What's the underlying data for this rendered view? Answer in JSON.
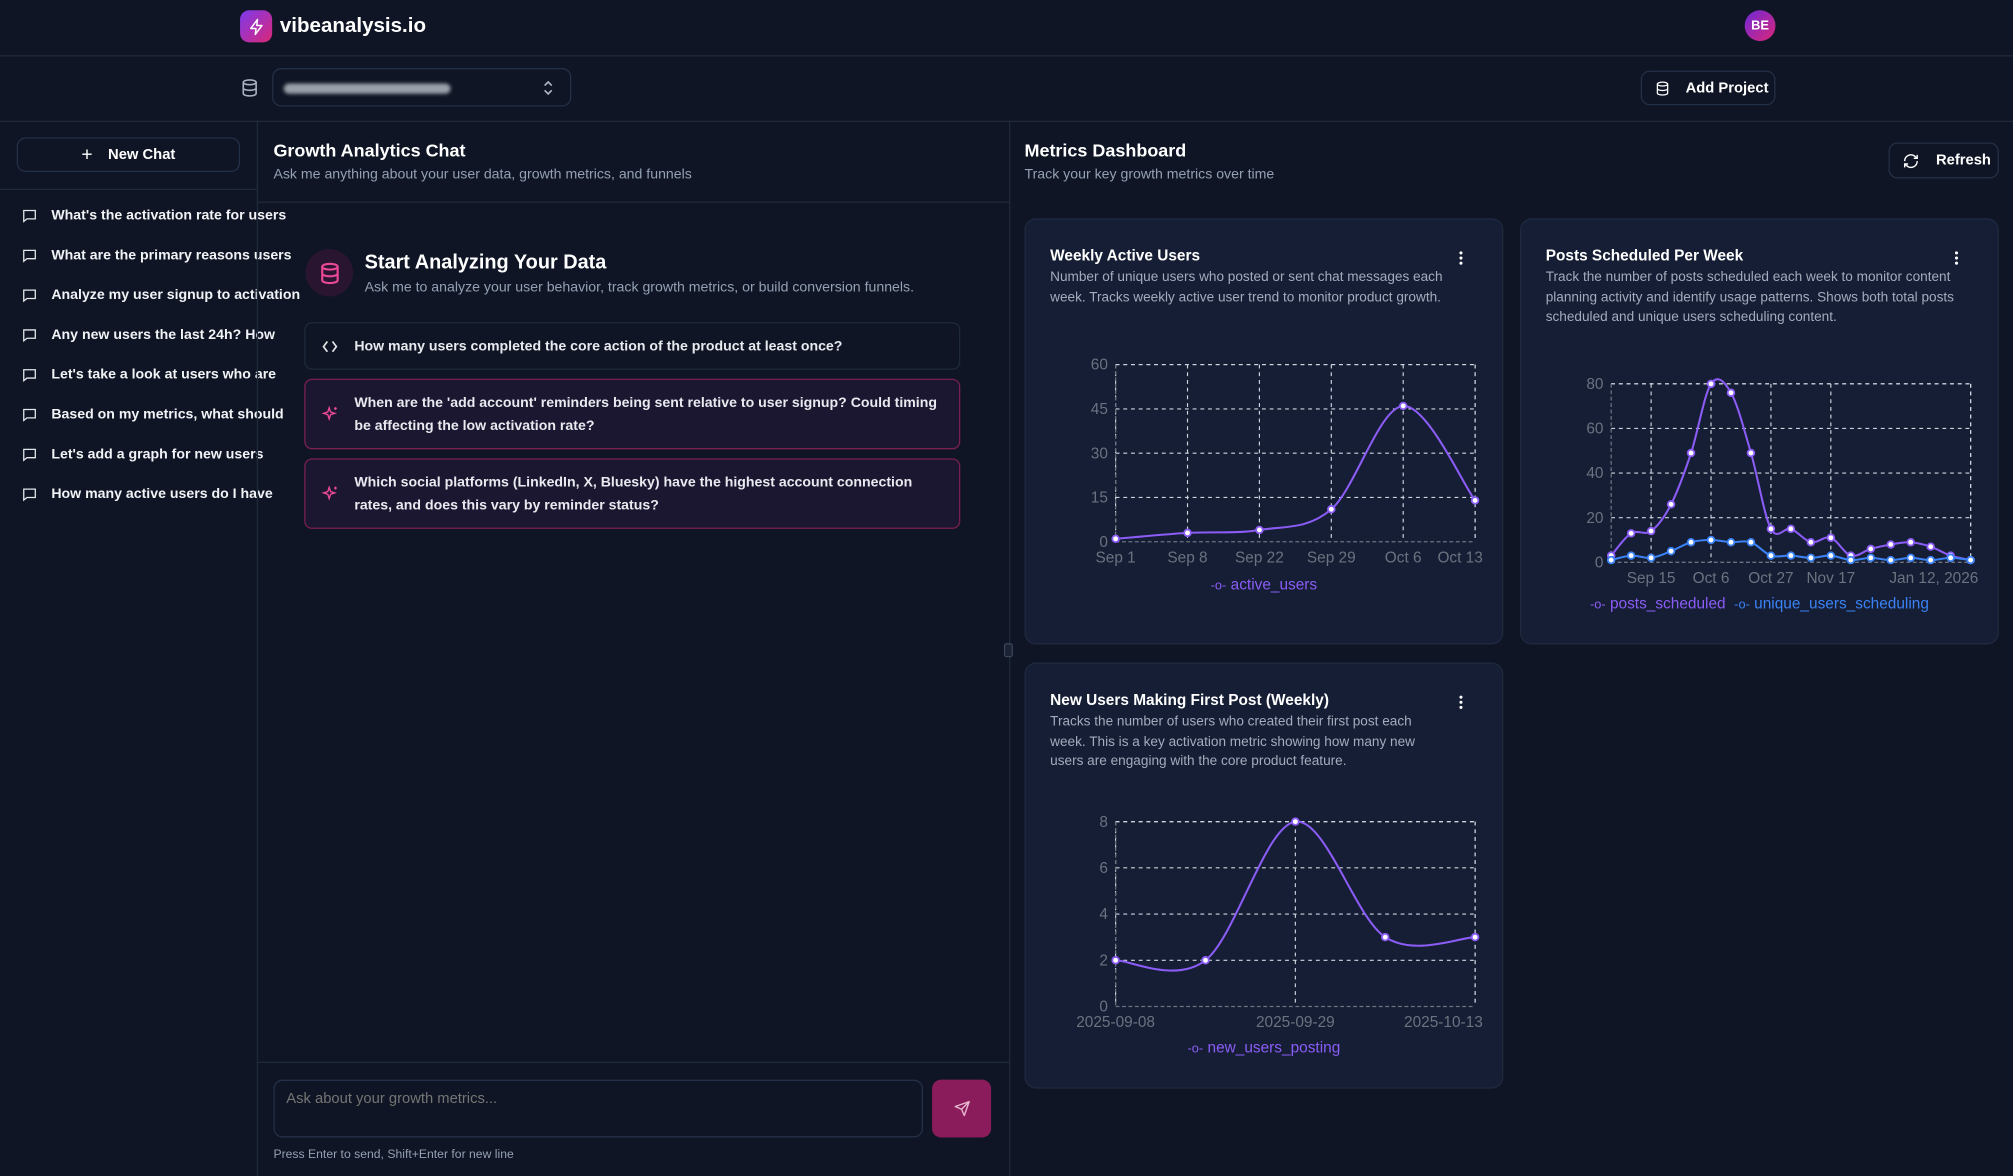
{
  "header": {
    "brand": "vibeanalysis.io",
    "avatar_initials": "BE",
    "add_project_label": "Add Project"
  },
  "sidebar": {
    "new_chat_label": "New Chat",
    "items": [
      {
        "label": "What's the activation rate for users"
      },
      {
        "label": "What are the primary reasons users"
      },
      {
        "label": "Analyze my user signup to activation"
      },
      {
        "label": "Any new users the last 24h? How"
      },
      {
        "label": "Let's take a look at users who are"
      },
      {
        "label": "Based on my metrics, what should"
      },
      {
        "label": "Let's add a graph for new users"
      },
      {
        "label": "How many active users do I have"
      }
    ]
  },
  "chat": {
    "title": "Growth Analytics Chat",
    "subtitle": "Ask me anything about your user data, growth metrics, and funnels",
    "empty_title": "Start Analyzing Your Data",
    "empty_subtitle": "Ask me to analyze your user behavior, track growth metrics, or build conversion funnels.",
    "suggestions": [
      {
        "text": "How many users completed the core action of the product at least once?",
        "icon": "code-icon"
      },
      {
        "text": "When are the 'add account' reminders being sent relative to user signup? Could timing be affecting the low activation rate?",
        "icon": "sparkle-icon"
      },
      {
        "text": "Which social platforms (LinkedIn, X, Bluesky) have the highest account connection rates, and does this vary by reminder status?",
        "icon": "sparkle-icon"
      }
    ],
    "input_placeholder": "Ask about your growth metrics...",
    "hint": "Press Enter to send, Shift+Enter for new line"
  },
  "dashboard": {
    "title": "Metrics Dashboard",
    "subtitle": "Track your key growth metrics over time",
    "refresh_label": "Refresh",
    "cards": [
      {
        "title": "Weekly Active Users",
        "description": "Number of unique users who posted or sent chat messages each week. Tracks weekly active user trend to monitor product growth."
      },
      {
        "title": "Posts Scheduled Per Week",
        "description": "Track the number of posts scheduled each week to monitor content planning activity and identify usage patterns. Shows both total posts scheduled and unique users scheduling content."
      },
      {
        "title": "New Users Making First Post (Weekly)",
        "description": "Tracks the number of users who created their first post each week. This is a key activation metric showing how many new users are engaging with the core product feature."
      }
    ]
  },
  "colors": {
    "purple": "#8b5cf6",
    "blue": "#3b82f6",
    "pink": "#ec4899"
  },
  "chart_data": [
    {
      "type": "line",
      "title": "Weekly Active Users",
      "ylim": [
        0,
        60
      ],
      "yticks": [
        0,
        15,
        30,
        45,
        60
      ],
      "x_ticks": [
        {
          "index": 0,
          "label": "Sep 1"
        },
        {
          "index": 1,
          "label": "Sep 8"
        },
        {
          "index": 2,
          "label": "Sep 22"
        },
        {
          "index": 3,
          "label": "Sep 29"
        },
        {
          "index": 4,
          "label": "Oct 6"
        },
        {
          "index": 5,
          "label": "Oct 13"
        }
      ],
      "series": [
        {
          "name": "active_users",
          "color": "#8b5cf6",
          "values": [
            1,
            3,
            4,
            11,
            46,
            14
          ]
        }
      ],
      "grid": true,
      "legend": "bottom"
    },
    {
      "type": "line",
      "title": "Posts Scheduled Per Week",
      "ylim": [
        0,
        80
      ],
      "yticks": [
        0,
        20,
        40,
        60,
        80
      ],
      "x_ticks": [
        {
          "index": 2,
          "label": "Sep 15"
        },
        {
          "index": 5,
          "label": "Oct 6"
        },
        {
          "index": 8,
          "label": "Oct 27"
        },
        {
          "index": 11,
          "label": "Nov 17"
        },
        {
          "index": 18,
          "label": "Jan 12, 2026"
        }
      ],
      "series": [
        {
          "name": "posts_scheduled",
          "color": "#8b5cf6",
          "values": [
            3,
            13,
            14,
            26,
            49,
            80,
            76,
            49,
            15,
            15,
            9,
            11,
            3,
            6,
            8,
            9,
            7,
            3,
            1
          ]
        },
        {
          "name": "unique_users_scheduling",
          "color": "#3b82f6",
          "values": [
            1,
            3,
            2,
            5,
            9,
            10,
            9,
            9,
            3,
            3,
            2,
            3,
            1,
            2,
            1,
            2,
            1,
            2,
            1
          ]
        }
      ],
      "grid": true,
      "legend": "bottom"
    },
    {
      "type": "line",
      "title": "New Users Making First Post (Weekly)",
      "ylim": [
        0,
        8
      ],
      "yticks": [
        0,
        2,
        4,
        6,
        8
      ],
      "x_ticks": [
        {
          "index": 0,
          "label": "2025-09-08"
        },
        {
          "index": 2,
          "label": "2025-09-29"
        },
        {
          "index": 4,
          "label": "2025-10-13"
        }
      ],
      "series": [
        {
          "name": "new_users_posting",
          "color": "#8b5cf6",
          "values": [
            2,
            2,
            8,
            3,
            3
          ]
        }
      ],
      "grid": true,
      "legend": "bottom"
    }
  ]
}
